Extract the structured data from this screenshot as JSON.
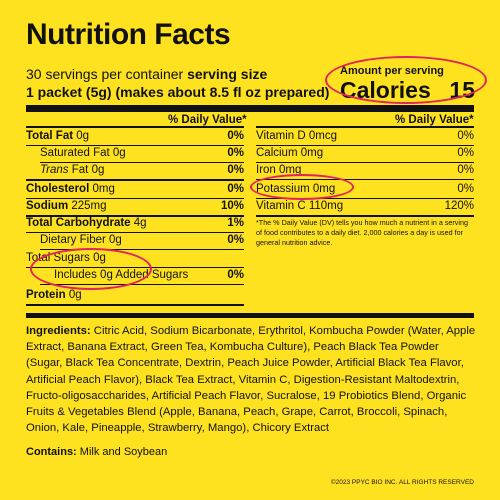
{
  "title": "Nutrition Facts",
  "servings_per_container": "30 servings per container",
  "serving_size_label": "serving size",
  "serving_size_value": "1 packet (5g) (makes about 8.5 fl oz prepared)",
  "amount_per_serving": "Amount per serving",
  "calories_label": "Calories",
  "calories_value": "15",
  "dv_header": "% Daily Value*",
  "left_rows": [
    {
      "label": "Total Fat",
      "amount": "0g",
      "dv": "0%"
    },
    {
      "label": "Saturated Fat",
      "amount": "0g",
      "dv": "0%"
    },
    {
      "label": "Trans",
      "label_suffix": "Fat",
      "amount": "0g",
      "dv": "0%"
    },
    {
      "label": "Cholesterol",
      "amount": "0mg",
      "dv": "0%"
    },
    {
      "label": "Sodium",
      "amount": "225mg",
      "dv": "10%"
    },
    {
      "label": "Total Carbohydrate",
      "amount": "4g",
      "dv": "1%"
    },
    {
      "label": "Dietary Fiber",
      "amount": "0g",
      "dv": "0%"
    },
    {
      "label": "Total Sugars",
      "amount": "0g",
      "dv": ""
    },
    {
      "label": "Includes",
      "amount": "0g Added Sugars",
      "dv": "0%"
    },
    {
      "label": "Protein",
      "amount": "0g",
      "dv": ""
    }
  ],
  "right_rows": [
    {
      "label": "Vitamin D",
      "amount": "0mcg",
      "dv": "0%"
    },
    {
      "label": "Calcium",
      "amount": "0mg",
      "dv": "0%"
    },
    {
      "label": "Iron",
      "amount": "0mg",
      "dv": "0%"
    },
    {
      "label": "Potassium",
      "amount": "0mg",
      "dv": "0%"
    },
    {
      "label": "Vitamin C",
      "amount": "110mg",
      "dv": "120%"
    }
  ],
  "footnote": "*The % Daily Value (DV) tells you how much a nutrient in a serving of food contributes to a daily diet. 2,000 calories a day is used for general nutrition advice.",
  "ingredients_label": "Ingredients:",
  "ingredients_text": "Citric Acid, Sodium Bicarbonate, Erythritol, Kombucha Powder (Water, Apple Extract, Banana Extract, Green Tea, Kombucha Culture), Peach Black Tea Powder (Sugar, Black Tea Concentrate, Dextrin, Peach Juice Powder, Artificial Black Tea Flavor, Artificial Peach Flavor), Black Tea Extract, Vitamin C, Digestion-Resistant Maltodextrin, Fructo-oligosaccharides, Artificial Peach Flavor, Sucralose, 19 Probiotics Blend, Organic Fruits & Vegetables Blend (Apple, Banana, Peach, Grape, Carrot, Broccoli, Spinach, Onion, Kale, Pineapple, Strawberry, Mango), Chicory Extract",
  "contains_label": "Contains:",
  "contains_text": "Milk and Soybean",
  "copyright": "©2023 PPYC BIO INC. ALL RIGHTS RESERVED",
  "colors": {
    "background": "#FFE21F",
    "annotation": "#E0245E"
  }
}
